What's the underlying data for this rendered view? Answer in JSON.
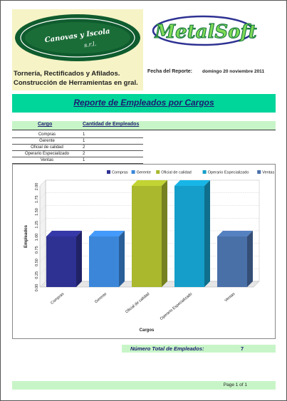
{
  "header": {
    "left_logo_text_1": "Canovas y Iscola",
    "left_logo_text_2": "s.r.l.",
    "right_logo_text": "MetalSoft",
    "company_line_1": "Tornería, Rectificados y Afilados.",
    "company_line_2": "Construcción de Herramientas en gral.",
    "fecha_label": "Fecha del Reporte:",
    "fecha_value": "domingo 20 noviembre 2011"
  },
  "report_title": "Reporte de Empleados por Cargos",
  "table": {
    "col_cargo": "Cargo",
    "col_cantidad": "Cantidad de Empleados",
    "rows": [
      {
        "cargo": "Compras",
        "cantidad": "1"
      },
      {
        "cargo": "Gerente",
        "cantidad": "1"
      },
      {
        "cargo": "Oficial de calidad",
        "cantidad": "2"
      },
      {
        "cargo": "Operario Especializado",
        "cantidad": "2"
      },
      {
        "cargo": "Ventas",
        "cantidad": "1"
      }
    ]
  },
  "chart_data": {
    "type": "bar",
    "categories": [
      "Compras",
      "Gerente",
      "Oficial de calidad",
      "Operario Especializado",
      "Ventas"
    ],
    "values": [
      1,
      1,
      2,
      2,
      1
    ],
    "series_colors": [
      "#2e3192",
      "#3b86d9",
      "#a9b82d",
      "#159ec9",
      "#4a70a8"
    ],
    "xlabel": "Cargos",
    "ylabel": "Empleados",
    "ylim": [
      0,
      2
    ],
    "yticks": [
      "0.00",
      "0.25",
      "0.50",
      "0.75",
      "1.00",
      "1.25",
      "1.50",
      "1.75",
      "2.00"
    ],
    "legend": [
      "Compras",
      "Gerente",
      "Oficial de calidad",
      "Operario Especializado",
      "Ventas"
    ],
    "legend_position": "top-right",
    "grid": true
  },
  "totals": {
    "label": "Número Total de Empleados:",
    "value": "7"
  },
  "footer": {
    "page": "Page 1 of 1"
  }
}
